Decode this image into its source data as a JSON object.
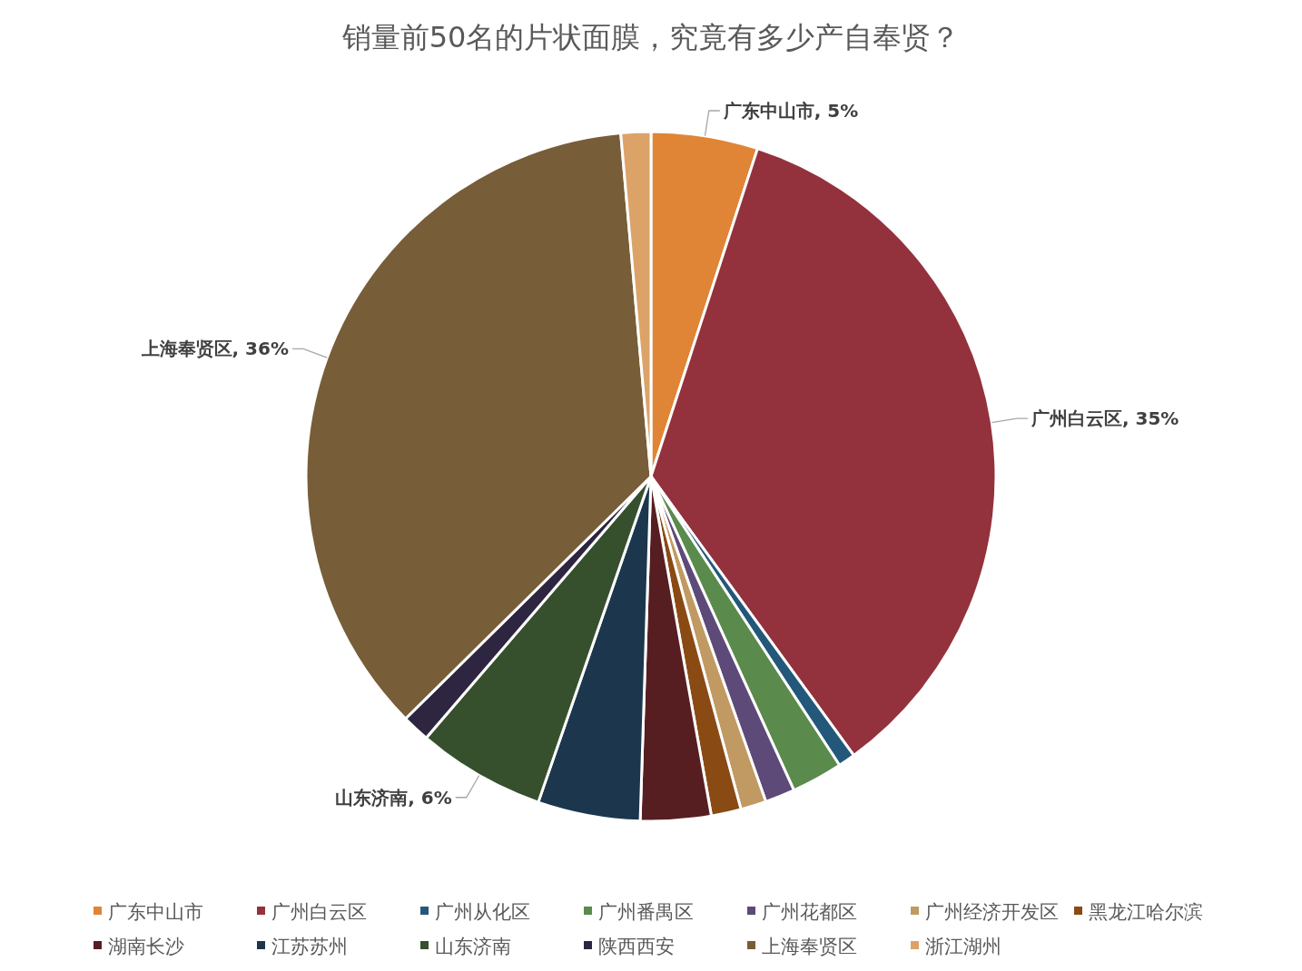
{
  "chart_data": {
    "type": "pie",
    "title": "销量前50名的片状面膜，究竟有多少产自奉贤？",
    "categories": [
      "广东中山市",
      "广州白云区",
      "广州从化区",
      "广州番禺区",
      "广州花都区",
      "广州经济开发区",
      "黑龙江哈尔滨",
      "湖南长沙",
      "江苏苏州",
      "山东济南",
      "陕西西安",
      "上海奉贤区",
      "浙江湖州"
    ],
    "values": [
      5,
      35,
      0.8,
      2.4,
      1.4,
      1.2,
      1.4,
      3.3,
      4.8,
      6,
      1.3,
      36,
      1.4
    ],
    "value_labels": [
      "广东中山市, 5%",
      "广州白云区, 35%",
      null,
      null,
      null,
      null,
      null,
      null,
      null,
      "山东济南, 6%",
      null,
      "上海奉贤区, 36%",
      null
    ],
    "colors": [
      "#e08535",
      "#93323c",
      "#24587a",
      "#5a8a4c",
      "#5e4a78",
      "#c09a62",
      "#8a4a14",
      "#571e22",
      "#1c374d",
      "#36502d",
      "#2e2540",
      "#775e38",
      "#dca368"
    ],
    "legend": "bottom"
  }
}
